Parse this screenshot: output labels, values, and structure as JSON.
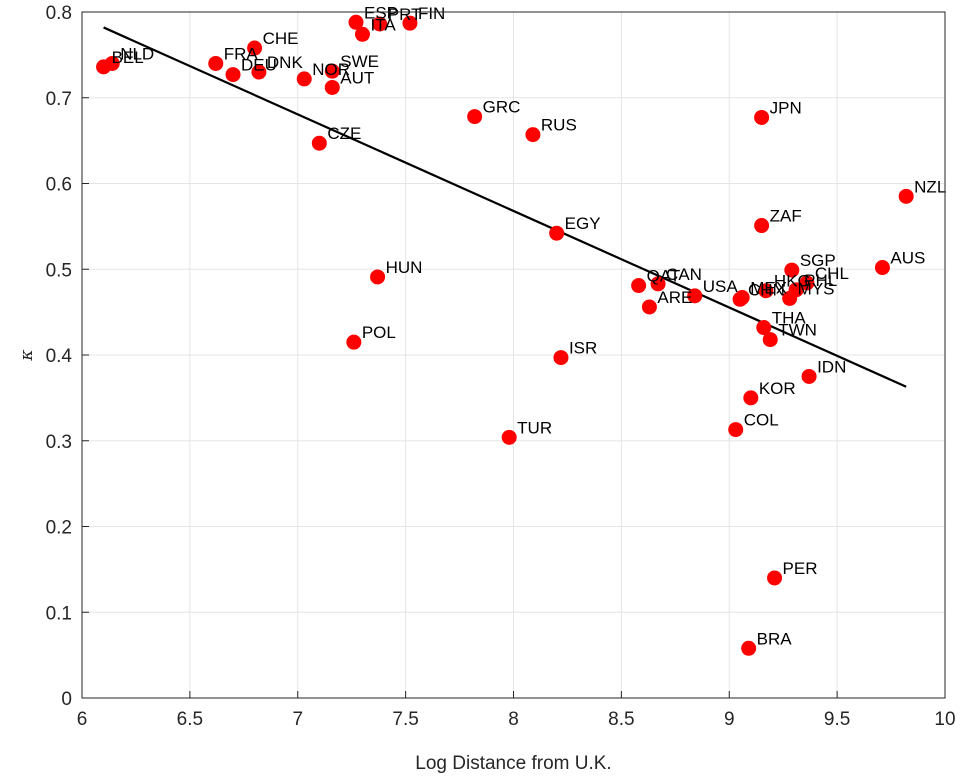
{
  "chart_data": {
    "type": "scatter",
    "xlabel": "Log Distance from U.K.",
    "ylabel": "κ",
    "xlim": [
      6,
      10
    ],
    "ylim": [
      0,
      0.8
    ],
    "xticks": [
      "6",
      "6.5",
      "7",
      "7.5",
      "8",
      "8.5",
      "9",
      "9.5",
      "10"
    ],
    "yticks": [
      "0",
      "0.1",
      "0.2",
      "0.3",
      "0.4",
      "0.5",
      "0.6",
      "0.7",
      "0.8"
    ],
    "grid": true,
    "colors": {
      "points": "#ff0000",
      "fit_line": "#000000",
      "grid": "#e5e5e5",
      "axis": "#262626"
    },
    "points": [
      {
        "label": "BEL",
        "x": 6.1,
        "y": 0.736
      },
      {
        "label": "NLD",
        "x": 6.14,
        "y": 0.74
      },
      {
        "label": "FRA",
        "x": 6.62,
        "y": 0.74
      },
      {
        "label": "DEU",
        "x": 6.7,
        "y": 0.727
      },
      {
        "label": "CHE",
        "x": 6.8,
        "y": 0.758
      },
      {
        "label": "DNK",
        "x": 6.82,
        "y": 0.73
      },
      {
        "label": "NOR",
        "x": 7.03,
        "y": 0.722
      },
      {
        "label": "SWE",
        "x": 7.16,
        "y": 0.731
      },
      {
        "label": "AUT",
        "x": 7.16,
        "y": 0.712
      },
      {
        "label": "CZE",
        "x": 7.1,
        "y": 0.647
      },
      {
        "label": "ESP",
        "x": 7.27,
        "y": 0.788
      },
      {
        "label": "ITA",
        "x": 7.3,
        "y": 0.774
      },
      {
        "label": "PRT",
        "x": 7.38,
        "y": 0.786
      },
      {
        "label": "FIN",
        "x": 7.52,
        "y": 0.787
      },
      {
        "label": "GRC",
        "x": 7.82,
        "y": 0.678
      },
      {
        "label": "RUS",
        "x": 8.09,
        "y": 0.657
      },
      {
        "label": "EGY",
        "x": 8.2,
        "y": 0.542
      },
      {
        "label": "HUN",
        "x": 7.37,
        "y": 0.491
      },
      {
        "label": "POL",
        "x": 7.26,
        "y": 0.415
      },
      {
        "label": "ISR",
        "x": 8.22,
        "y": 0.397
      },
      {
        "label": "TUR",
        "x": 7.98,
        "y": 0.304
      },
      {
        "label": "QAT",
        "x": 8.58,
        "y": 0.481
      },
      {
        "label": "CAN",
        "x": 8.67,
        "y": 0.483
      },
      {
        "label": "ARE",
        "x": 8.63,
        "y": 0.456
      },
      {
        "label": "USA",
        "x": 8.84,
        "y": 0.469
      },
      {
        "label": "CHN",
        "x": 9.05,
        "y": 0.465
      },
      {
        "label": "MEX",
        "x": 9.06,
        "y": 0.467
      },
      {
        "label": "HKG",
        "x": 9.17,
        "y": 0.475
      },
      {
        "label": "SGP",
        "x": 9.29,
        "y": 0.499
      },
      {
        "label": "CHL",
        "x": 9.36,
        "y": 0.484
      },
      {
        "label": "MYS",
        "x": 9.28,
        "y": 0.466
      },
      {
        "label": "PHL",
        "x": 9.31,
        "y": 0.476
      },
      {
        "label": "JPN",
        "x": 9.15,
        "y": 0.677
      },
      {
        "label": "ZAF",
        "x": 9.15,
        "y": 0.551
      },
      {
        "label": "THA",
        "x": 9.16,
        "y": 0.432
      },
      {
        "label": "TWN",
        "x": 9.19,
        "y": 0.418
      },
      {
        "label": "IDN",
        "x": 9.37,
        "y": 0.375
      },
      {
        "label": "KOR",
        "x": 9.1,
        "y": 0.35
      },
      {
        "label": "COL",
        "x": 9.03,
        "y": 0.313
      },
      {
        "label": "PER",
        "x": 9.21,
        "y": 0.14
      },
      {
        "label": "BRA",
        "x": 9.09,
        "y": 0.058
      },
      {
        "label": "AUS",
        "x": 9.71,
        "y": 0.502
      },
      {
        "label": "NZL",
        "x": 9.82,
        "y": 0.585
      }
    ],
    "fit_line": {
      "x": [
        6.1,
        9.82
      ],
      "y": [
        0.782,
        0.363
      ]
    }
  }
}
